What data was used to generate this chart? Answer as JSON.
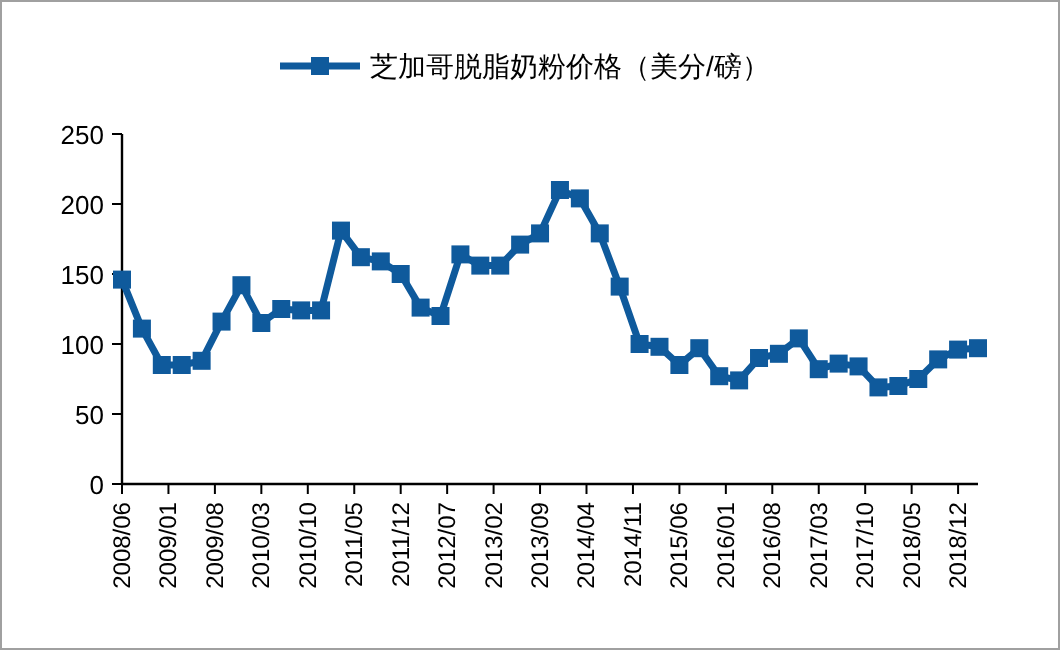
{
  "chart_data": {
    "type": "line",
    "legend": "top",
    "marker": "square",
    "line_style": "solid",
    "x": [
      "2008-06",
      "2008-09",
      "2008-12",
      "2009-03",
      "2009-06",
      "2009-09",
      "2009-12",
      "2010-03",
      "2010-06",
      "2010-09",
      "2010-12",
      "2011-03",
      "2011-06",
      "2011-09",
      "2011-12",
      "2012-03",
      "2012-06",
      "2012-09",
      "2012-12",
      "2013-03",
      "2013-06",
      "2013-09",
      "2013-12",
      "2014-03",
      "2014-06",
      "2014-09",
      "2014-12",
      "2015-03",
      "2015-06",
      "2015-09",
      "2015-12",
      "2016-03",
      "2016-06",
      "2016-09",
      "2016-12",
      "2017-03",
      "2017-06",
      "2017-09",
      "2017-12",
      "2018-03",
      "2018-06",
      "2018-09",
      "2018-12",
      "2019-03"
    ],
    "series": [
      {
        "name": "芝加哥脱脂奶粉价格（美分/磅）",
        "color": "#0f5a9c",
        "values": [
          146,
          111,
          85,
          85,
          88,
          116,
          142,
          115,
          125,
          124,
          124,
          181,
          162,
          159,
          150,
          126,
          120,
          164,
          156,
          156,
          171,
          179,
          210,
          204,
          179,
          141,
          100,
          98,
          85,
          97,
          77,
          74,
          90,
          93,
          104,
          82,
          86,
          84,
          69,
          70,
          75,
          89,
          96,
          97
        ]
      }
    ],
    "xlim": [
      "2008-06",
      "2019-03"
    ],
    "xticks": [
      {
        "value": "2008-06",
        "label": "2008/06"
      },
      {
        "value": "2009-01",
        "label": "2009/01"
      },
      {
        "value": "2009-08",
        "label": "2009/08"
      },
      {
        "value": "2010-03",
        "label": "2010/03"
      },
      {
        "value": "2010-10",
        "label": "2010/10"
      },
      {
        "value": "2011-05",
        "label": "2011/05"
      },
      {
        "value": "2011-12",
        "label": "2011/12"
      },
      {
        "value": "2012-07",
        "label": "2012/07"
      },
      {
        "value": "2013-02",
        "label": "2013/02"
      },
      {
        "value": "2013-09",
        "label": "2013/09"
      },
      {
        "value": "2014-04",
        "label": "2014/04"
      },
      {
        "value": "2014-11",
        "label": "2014/11"
      },
      {
        "value": "2015-06",
        "label": "2015/06"
      },
      {
        "value": "2016-01",
        "label": "2016/01"
      },
      {
        "value": "2016-08",
        "label": "2016/08"
      },
      {
        "value": "2017-03",
        "label": "2017/03"
      },
      {
        "value": "2017-10",
        "label": "2017/10"
      },
      {
        "value": "2018-05",
        "label": "2018/05"
      },
      {
        "value": "2018-12",
        "label": "2018/12"
      }
    ],
    "ylim": [
      0,
      250
    ],
    "yticks": [
      0,
      50,
      100,
      150,
      200,
      250
    ],
    "grid": false
  }
}
